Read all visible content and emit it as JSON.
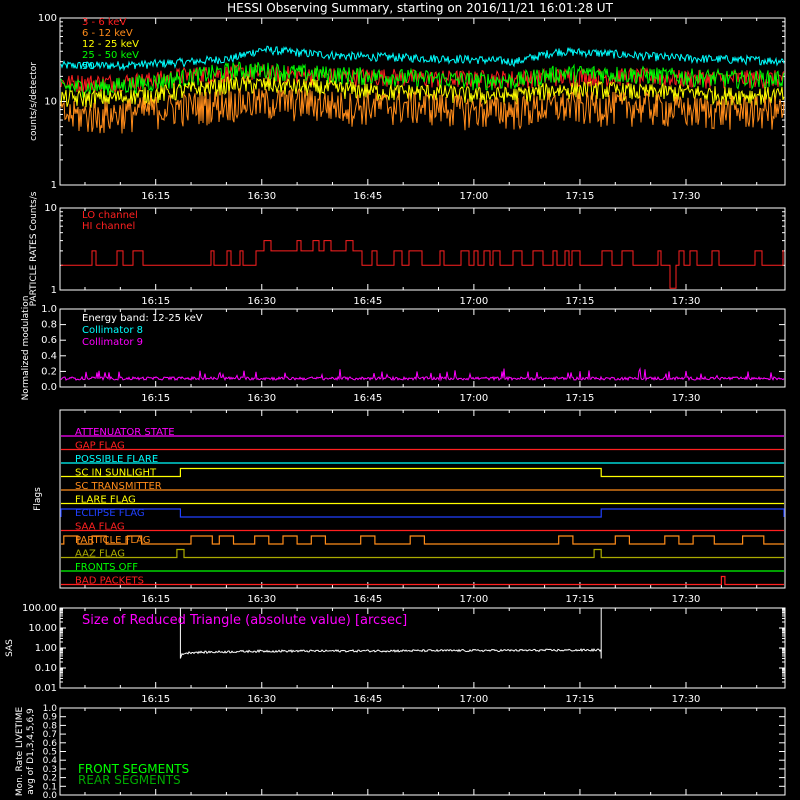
{
  "title": "HESSI Observing Summary, starting on 2016/11/21 16:01:28 UT",
  "time_ticks": [
    "16:15",
    "16:30",
    "16:45",
    "17:00",
    "17:15",
    "17:30"
  ],
  "colors": {
    "background": "#000000",
    "axes": "#ffffff",
    "band_3_6": "#ff2020",
    "band_6_12": "#ff8c1a",
    "band_12_25": "#ffff00",
    "band_25_50": "#00ff00",
    "band_50_100": "#00ffff",
    "lo_channel": "#ff2020",
    "hi_channel": "#ff2020",
    "collimator_8": "#00ffff",
    "collimator_9": "#ff00ff"
  },
  "chart_data": [
    {
      "type": "line",
      "panel": "count_rates",
      "ylabel": "counts/s/detector",
      "yscale": "log",
      "ylim": [
        1,
        100
      ],
      "yticks": [
        "1",
        "10",
        "100"
      ],
      "xlim": [
        "16:01:28",
        "17:44:00"
      ],
      "x": [
        "16:02",
        "16:08",
        "16:14",
        "16:20",
        "16:26",
        "16:30",
        "16:36",
        "16:42",
        "16:48",
        "16:54",
        "17:00",
        "17:06",
        "17:12",
        "17:18",
        "17:24",
        "17:30",
        "17:36",
        "17:42"
      ],
      "series": [
        {
          "name": "3 - 6 keV",
          "values": [
            17,
            17,
            18,
            21,
            22,
            22,
            21,
            20,
            20,
            19,
            19,
            19,
            20,
            20,
            20,
            19,
            19,
            19
          ]
        },
        {
          "name": "6 - 12 keV",
          "values": [
            7,
            7,
            8,
            9,
            10,
            10,
            10,
            9,
            9,
            9,
            8,
            8,
            9,
            9,
            9,
            8,
            8,
            8
          ]
        },
        {
          "name": "12 - 25 keV",
          "values": [
            11,
            11,
            12,
            14,
            16,
            16,
            15,
            14,
            13,
            13,
            12,
            12,
            14,
            14,
            13,
            13,
            12,
            12
          ]
        },
        {
          "name": "25 - 50 keV",
          "values": [
            15,
            15,
            17,
            20,
            24,
            24,
            22,
            21,
            20,
            19,
            18,
            18,
            22,
            22,
            21,
            20,
            19,
            19
          ]
        },
        {
          "name": "50",
          "values": [
            27,
            27,
            28,
            30,
            33,
            42,
            38,
            35,
            34,
            33,
            32,
            30,
            40,
            38,
            35,
            33,
            32,
            31
          ]
        }
      ]
    },
    {
      "type": "line",
      "panel": "particle_rates",
      "ylabel": "PARTICLE RATES Counts/s",
      "yscale": "log",
      "ylim": [
        1,
        10
      ],
      "yticks": [
        "1",
        "10"
      ],
      "series": [
        {
          "name": "LO channel",
          "values": []
        },
        {
          "name": "HI channel",
          "values": [
            2,
            2,
            2,
            2,
            2,
            3,
            3,
            3,
            2,
            2,
            2,
            2,
            2,
            2,
            2,
            2,
            2,
            2
          ]
        }
      ]
    },
    {
      "type": "line",
      "panel": "normalized_modulation",
      "ylabel": "Normalized modulation",
      "ylim": [
        0.0,
        1.0
      ],
      "yticks": [
        "0.0",
        "0.2",
        "0.4",
        "0.6",
        "0.8",
        "1.0"
      ],
      "annotation": "Energy band: 12-25 keV",
      "series": [
        {
          "name": "Collimator 8",
          "values": []
        },
        {
          "name": "Collimator 9",
          "values": [
            0.1,
            0.11,
            0.1,
            0.1,
            0.11,
            0.1,
            0.1,
            0.1,
            0.1,
            0.1,
            0.1,
            0.1,
            0.1,
            0.1,
            0.1,
            0.1,
            0.1,
            0.1
          ]
        }
      ]
    },
    {
      "type": "line",
      "panel": "flags",
      "ylabel": "Flags",
      "flags": [
        {
          "name": "ATTENUATOR STATE",
          "color": "#ff00ff",
          "segments": []
        },
        {
          "name": "GAP FLAG",
          "color": "#ff2020",
          "segments": []
        },
        {
          "name": "POSSIBLE FLARE",
          "color": "#00ffff",
          "segments": []
        },
        {
          "name": "SC IN SUNLIGHT",
          "color": "#ffff00",
          "segments": [
            [
              "16:18:30",
              "17:18:00"
            ]
          ]
        },
        {
          "name": "SC TRANSMITTER",
          "color": "#ff8c1a",
          "segments": []
        },
        {
          "name": "FLARE FLAG",
          "color": "#ffff00",
          "segments": []
        },
        {
          "name": "ECLIPSE FLAG",
          "color": "#2040ff",
          "segments": [
            [
              "16:01:28",
              "16:18:30"
            ],
            [
              "17:18:00",
              "17:44:00"
            ]
          ]
        },
        {
          "name": "SAA FLAG",
          "color": "#ff2020",
          "segments": []
        },
        {
          "name": "PARTICLE FLAG",
          "color": "#ff8c1a",
          "segments": [
            [
              "16:02",
              "16:04"
            ],
            [
              "16:06",
              "16:08"
            ],
            [
              "16:11",
              "16:13"
            ],
            [
              "16:20",
              "16:23"
            ],
            [
              "16:24",
              "16:26"
            ],
            [
              "16:29",
              "16:31"
            ],
            [
              "16:33",
              "16:35"
            ],
            [
              "16:37",
              "16:39"
            ],
            [
              "16:44",
              "16:46"
            ],
            [
              "16:51",
              "16:53"
            ],
            [
              "17:12",
              "17:14"
            ],
            [
              "17:20",
              "17:22"
            ],
            [
              "17:27",
              "17:29"
            ],
            [
              "17:31",
              "17:34"
            ],
            [
              "17:38",
              "17:41"
            ]
          ]
        },
        {
          "name": "AAZ FLAG",
          "color": "#aaaa00",
          "segments": [
            [
              "16:18",
              "16:19"
            ],
            [
              "17:17",
              "17:18"
            ]
          ]
        },
        {
          "name": "FRONTS OFF",
          "color": "#00ff00",
          "segments": []
        },
        {
          "name": "BAD PACKETS",
          "color": "#ff2020",
          "segments": [
            [
              "17:35",
              "17:35:30"
            ]
          ]
        }
      ]
    },
    {
      "type": "line",
      "panel": "sas",
      "ylabel": "SAS",
      "yscale": "log",
      "ylim": [
        0.01,
        100
      ],
      "yticks": [
        "0.01",
        "0.10",
        "1.00",
        "10.00",
        "100.00"
      ],
      "annotation": "Size of Reduced Triangle (absolute value) [arcsec]",
      "series": [
        {
          "name": "Size of Reduced Triangle",
          "x": [
            "16:18:30",
            "16:20",
            "16:30",
            "16:45",
            "17:00",
            "17:15",
            "17:18"
          ],
          "values": [
            0.5,
            0.6,
            0.7,
            0.72,
            0.75,
            0.78,
            0.8
          ]
        }
      ]
    },
    {
      "type": "line",
      "panel": "livetime",
      "ylabel": "Mon. Rate LIVETIME avg of D1,3,4,5,6,9",
      "ylim": [
        0.0,
        1.0
      ],
      "yticks": [
        "0.0",
        "0.1",
        "0.2",
        "0.3",
        "0.4",
        "0.5",
        "0.6",
        "0.7",
        "0.8",
        "0.9",
        "1.0"
      ],
      "series": [
        {
          "name": "FRONT SEGMENTS",
          "color": "#00ff00",
          "values": []
        },
        {
          "name": "REAR SEGMENTS",
          "color": "#00aa00",
          "values": []
        }
      ]
    }
  ]
}
